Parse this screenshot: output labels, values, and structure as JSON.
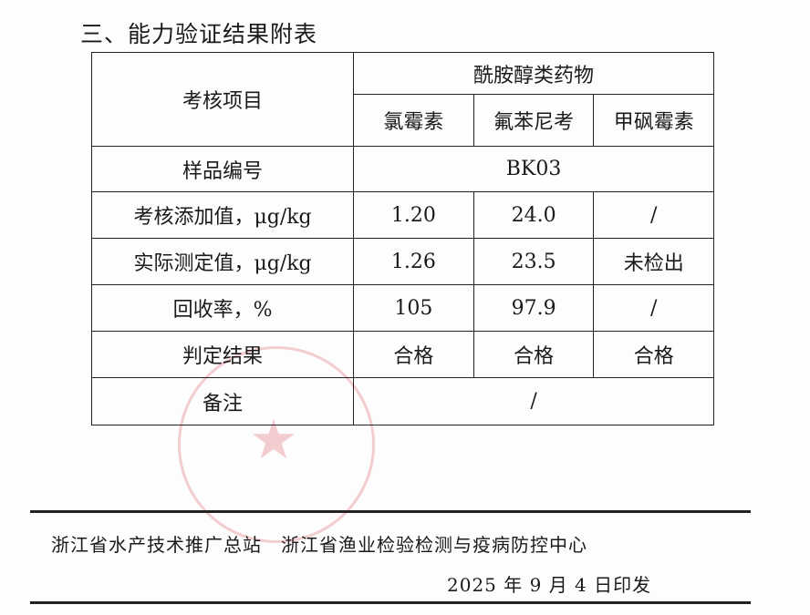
{
  "heading": "三、能力验证结果附表",
  "table": {
    "item_header": "考核项目",
    "group_header": "酰胺醇类药物",
    "columns": [
      "氯霉素",
      "氟苯尼考",
      "甲砜霉素"
    ],
    "sample_row": {
      "label": "样品编号",
      "value": "BK03"
    },
    "rows": [
      {
        "label": "考核添加值，μg/kg",
        "values": [
          "1.20",
          "24.0",
          "/"
        ]
      },
      {
        "label": "实际测定值，μg/kg",
        "values": [
          "1.26",
          "23.5",
          "未检出"
        ]
      },
      {
        "label": "回收率，%",
        "values": [
          "105",
          "97.9",
          "/"
        ]
      },
      {
        "label": "判定结果",
        "values": [
          "合格",
          "合格",
          "合格"
        ]
      }
    ],
    "remarks_row": {
      "label": "备注",
      "value": "/"
    }
  },
  "footer": {
    "issuers": "浙江省水产技术推广总站　浙江省渔业检验检测与疫病防控中心",
    "date": "2025 年 9 月 4 日印发"
  },
  "colors": {
    "stamp": "#dc505a",
    "text": "#1a1a1a"
  }
}
